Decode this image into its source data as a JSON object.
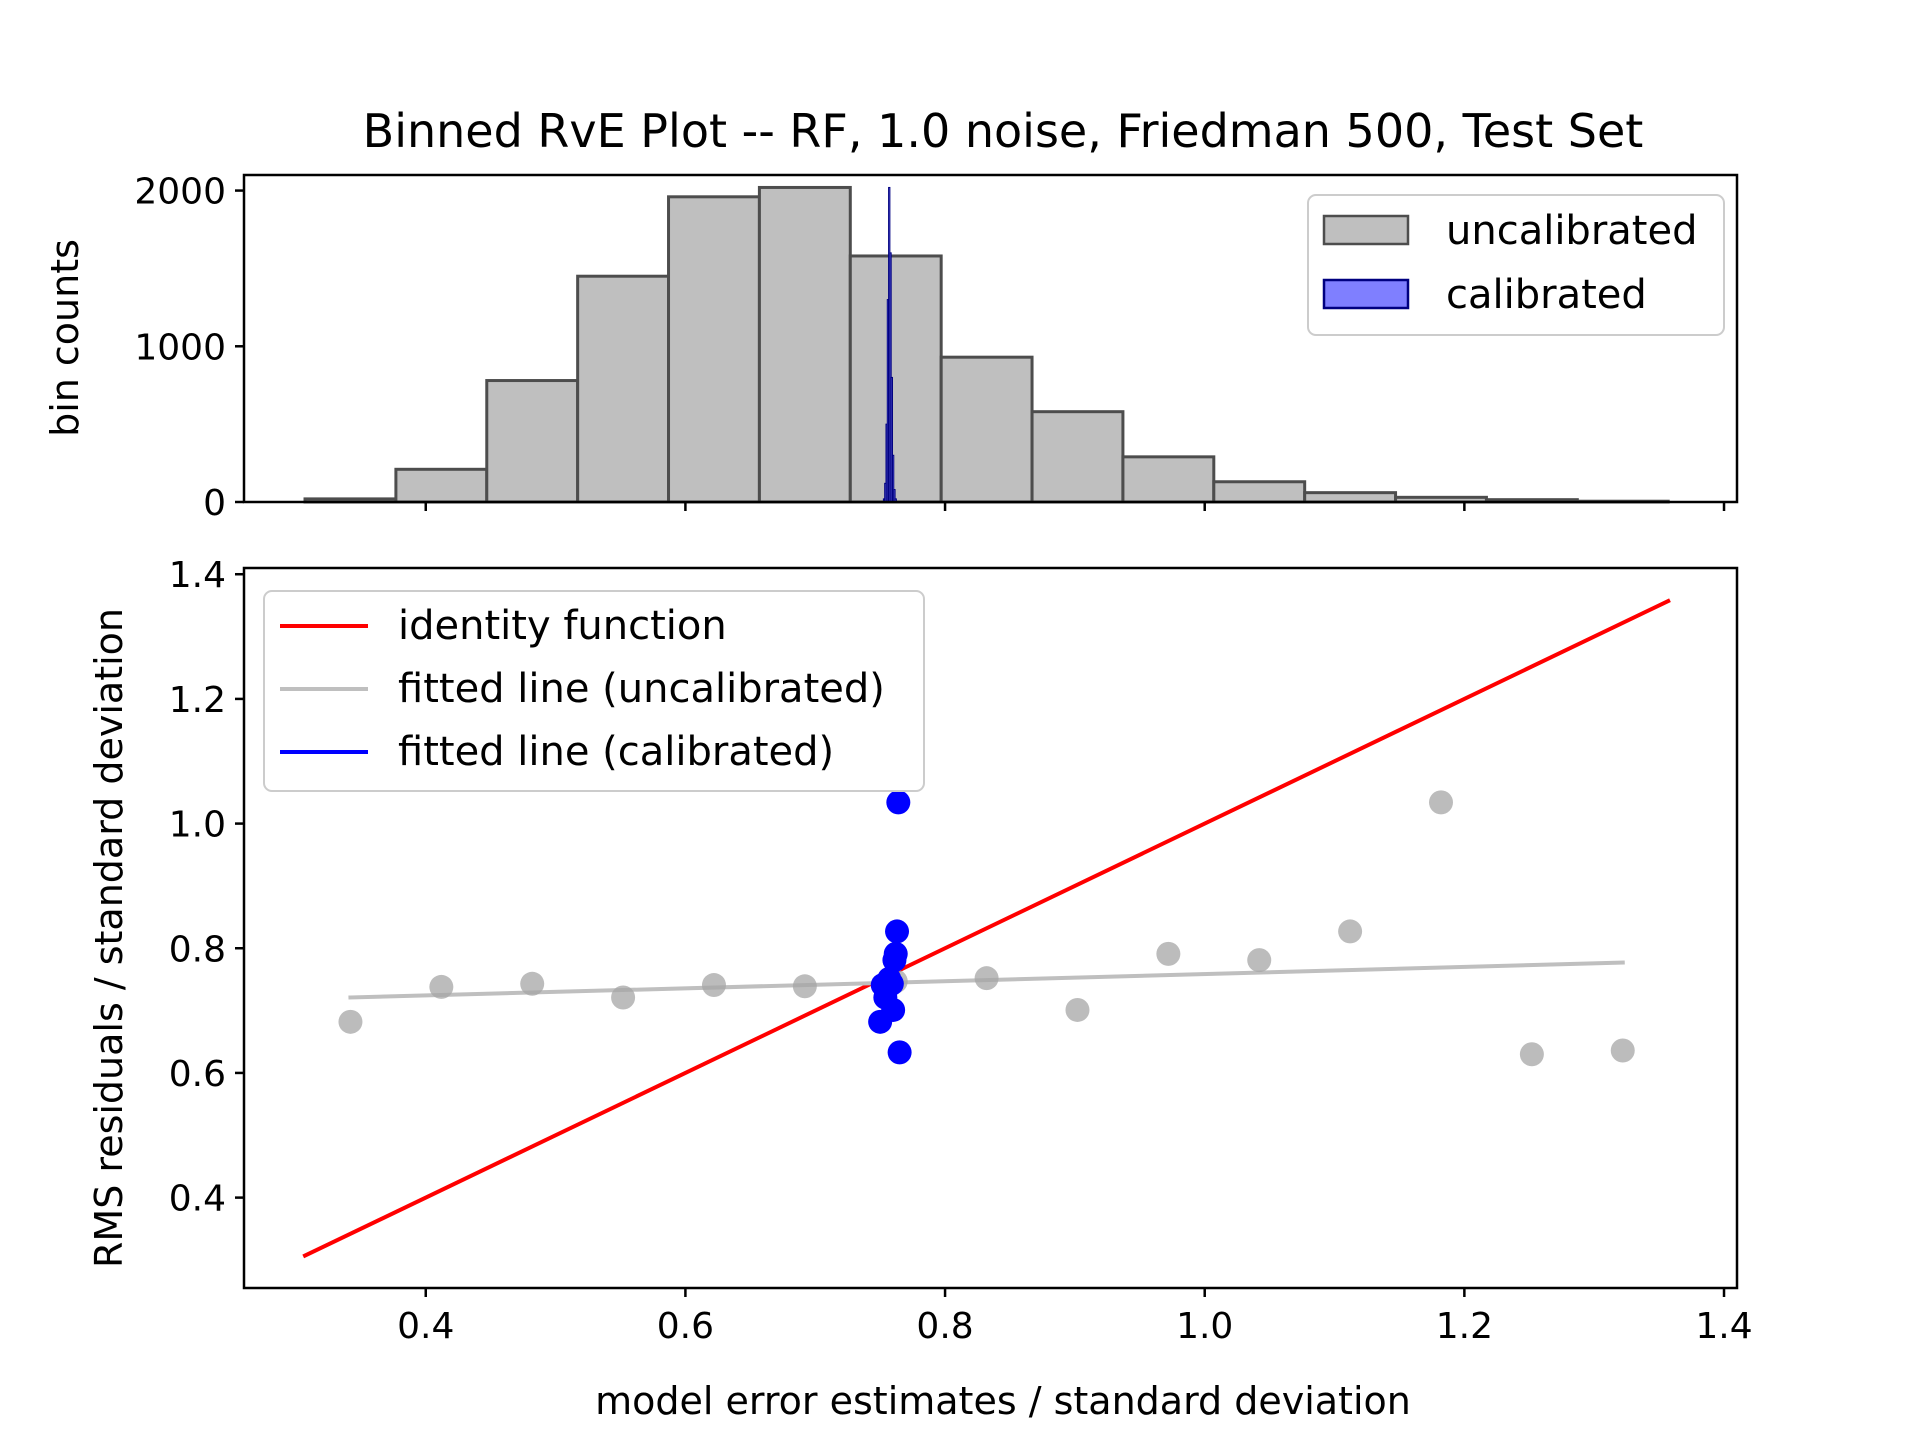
{
  "title": "Binned RvE Plot -- RF, 1.0 noise, Friedman 500, Test Set",
  "colors": {
    "uncalibrated_fill": "#bfbfbf",
    "uncalibrated_edge": "#4d4d4d",
    "calibrated_fill": "#7f7fff",
    "calibrated_edge": "#000080",
    "identity": "#ff0000",
    "fit_uncal": "#bfbfbf",
    "fit_cal": "#0000ff",
    "points_uncal": "#a6a6a6",
    "points_cal": "#0000ff"
  },
  "chart_data": [
    {
      "type": "bar",
      "panel": "top",
      "ylabel": "bin counts",
      "xlim": [
        0.26,
        1.41
      ],
      "ylim": [
        0,
        2100
      ],
      "yticks": [
        "0",
        "1000",
        "2000"
      ],
      "ytick_values": [
        0,
        1000,
        2000
      ],
      "legend": {
        "placement": "top-right",
        "entries": [
          "uncalibrated",
          "calibrated"
        ]
      },
      "series": [
        {
          "name": "uncalibrated",
          "bin_edges": [
            0.307,
            0.377,
            0.447,
            0.517,
            0.587,
            0.657,
            0.727,
            0.797,
            0.867,
            0.937,
            1.007,
            1.077,
            1.147,
            1.217,
            1.287,
            1.357
          ],
          "counts": [
            20,
            210,
            780,
            1450,
            1960,
            2020,
            1580,
            930,
            580,
            290,
            130,
            60,
            30,
            15,
            5
          ]
        },
        {
          "name": "calibrated",
          "bin_edges": [
            0.7525,
            0.7535,
            0.7545,
            0.7555,
            0.7565,
            0.7575,
            0.7585,
            0.7595,
            0.7605,
            0.7615,
            0.7625
          ],
          "counts": [
            20,
            120,
            500,
            1300,
            2020,
            1600,
            800,
            300,
            80,
            20
          ]
        }
      ]
    },
    {
      "type": "scatter",
      "panel": "bottom",
      "xlabel": "model error estimates / standard deviation",
      "ylabel": "RMS residuals / standard deviation",
      "xlim": [
        0.26,
        1.41
      ],
      "ylim": [
        0.255,
        1.41
      ],
      "xticks": [
        "0.4",
        "0.6",
        "0.8",
        "1.0",
        "1.2",
        "1.4"
      ],
      "xtick_values": [
        0.4,
        0.6,
        0.8,
        1.0,
        1.2,
        1.4
      ],
      "yticks": [
        "0.4",
        "0.6",
        "0.8",
        "1.0",
        "1.2",
        "1.4"
      ],
      "ytick_values": [
        0.4,
        0.6,
        0.8,
        1.0,
        1.2,
        1.4
      ],
      "legend": {
        "placement": "top-left",
        "entries": [
          "identity function",
          "fitted line (uncalibrated)",
          "fitted line (calibrated)"
        ]
      },
      "lines": [
        {
          "name": "identity function",
          "x": [
            0.307,
            1.357
          ],
          "y": [
            0.307,
            1.357
          ]
        },
        {
          "name": "fitted line (uncalibrated)",
          "x": [
            0.342,
            1.322
          ],
          "y": [
            0.721,
            0.777
          ]
        },
        {
          "name": "fitted line (calibrated)",
          "x": [
            0.758,
            0.763
          ],
          "y": [
            0.7,
            0.8
          ]
        }
      ],
      "points": [
        {
          "group": "uncalibrated",
          "x": [
            0.342,
            0.412,
            0.482,
            0.552,
            0.622,
            0.692,
            0.762,
            0.832,
            0.902,
            0.972,
            1.042,
            1.112,
            1.182,
            1.252,
            1.322
          ],
          "y": [
            0.682,
            0.738,
            0.743,
            0.721,
            0.741,
            0.739,
            0.747,
            0.752,
            0.701,
            0.791,
            0.781,
            0.827,
            1.034,
            0.63,
            0.636
          ]
        },
        {
          "group": "calibrated",
          "x": [
            0.75,
            0.752,
            0.754,
            0.756,
            0.757,
            0.759,
            0.76,
            0.761,
            0.762,
            0.763,
            0.764,
            0.765
          ],
          "y": [
            0.682,
            0.741,
            0.721,
            0.738,
            0.751,
            0.743,
            0.701,
            0.781,
            0.791,
            0.827,
            1.034,
            0.633
          ]
        }
      ]
    }
  ]
}
